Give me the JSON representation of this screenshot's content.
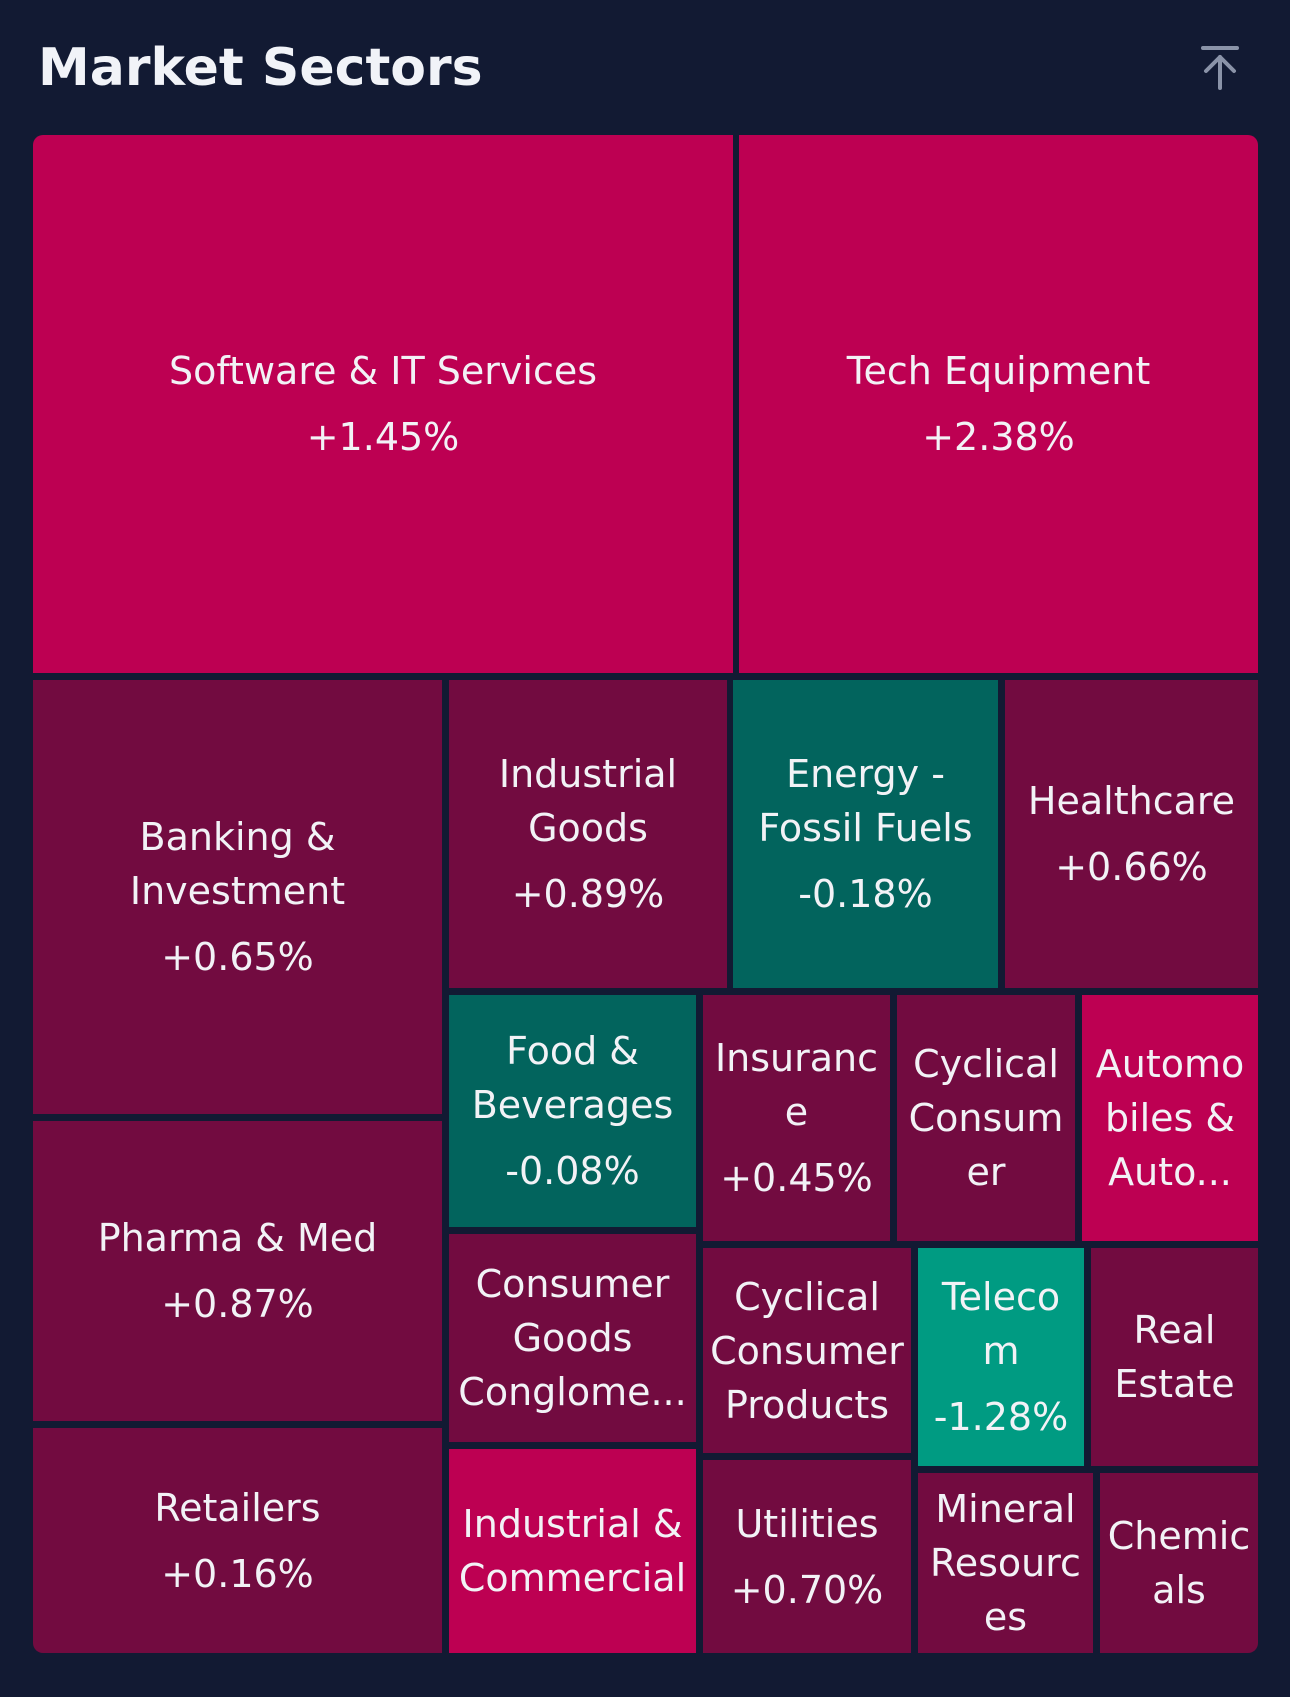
{
  "header": {
    "title": "Market Sectors",
    "top_icon": "arrow-up-to-line-icon"
  },
  "colors": {
    "background": "#121a33",
    "strong_gain": "#bd0052",
    "gain": "#720b40",
    "loss": "#02645d",
    "strong_loss": "#009b82"
  },
  "sectors": [
    {
      "id": "software",
      "name": "Software & IT Services",
      "change": "+1.45%"
    },
    {
      "id": "tech",
      "name": "Tech Equipment",
      "change": "+2.38%"
    },
    {
      "id": "banking",
      "name": "Banking &\nInvestment",
      "change": "+0.65%"
    },
    {
      "id": "industrial-goods",
      "name": "Industrial\nGoods",
      "change": "+0.89%"
    },
    {
      "id": "energy",
      "name": "Energy -\nFossil Fuels",
      "change": "-0.18%"
    },
    {
      "id": "healthcare",
      "name": "Healthcare",
      "change": "+0.66%"
    },
    {
      "id": "food",
      "name": "Food &\nBeverages",
      "change": "-0.08%"
    },
    {
      "id": "insurance",
      "name": "Insuranc\ne",
      "change": "+0.45%"
    },
    {
      "id": "cyclical-consumer",
      "name": "Cyclical\nConsum\ner",
      "change": ""
    },
    {
      "id": "automobiles",
      "name": "Automo\nbiles &\nAuto...",
      "change": ""
    },
    {
      "id": "pharma",
      "name": "Pharma & Med",
      "change": "+0.87%"
    },
    {
      "id": "consumer-goods",
      "name": "Consumer\nGoods\nConglome...",
      "change": ""
    },
    {
      "id": "cyclical-products",
      "name": "Cyclical\nConsumer\nProducts",
      "change": ""
    },
    {
      "id": "telecom",
      "name": "Teleco\nm",
      "change": "-1.28%"
    },
    {
      "id": "real-estate",
      "name": "Real\nEstate",
      "change": ""
    },
    {
      "id": "retailers",
      "name": "Retailers",
      "change": "+0.16%"
    },
    {
      "id": "industrial-commercial",
      "name": "Industrial &\nCommercial",
      "change": ""
    },
    {
      "id": "utilities",
      "name": "Utilities",
      "change": "+0.70%"
    },
    {
      "id": "mineral",
      "name": "Mineral\nResourc\nes",
      "change": ""
    },
    {
      "id": "chemicals",
      "name": "Chemic\nals",
      "change": ""
    }
  ]
}
